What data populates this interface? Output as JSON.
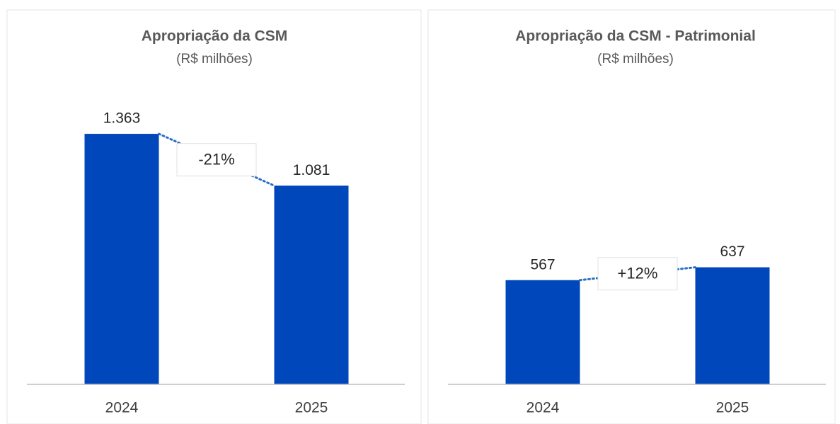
{
  "chart_data": [
    {
      "type": "bar",
      "title": "Apropriação da CSM",
      "subtitle": "(R$ milhões)",
      "categories": [
        "2024",
        "2025"
      ],
      "values": [
        1363,
        1081
      ],
      "value_labels": [
        "1.363",
        "1.081"
      ],
      "annotation": "-21%",
      "color": "#0047bb",
      "ylim": [
        0,
        1475
      ]
    },
    {
      "type": "bar",
      "title": "Apropriação da CSM - Patrimonial",
      "subtitle": "(R$ milhões)",
      "categories": [
        "2024",
        "2025"
      ],
      "values": [
        567,
        637
      ],
      "annotation": "+12%",
      "color": "#0047bb",
      "ylim": [
        0,
        1475
      ]
    }
  ]
}
